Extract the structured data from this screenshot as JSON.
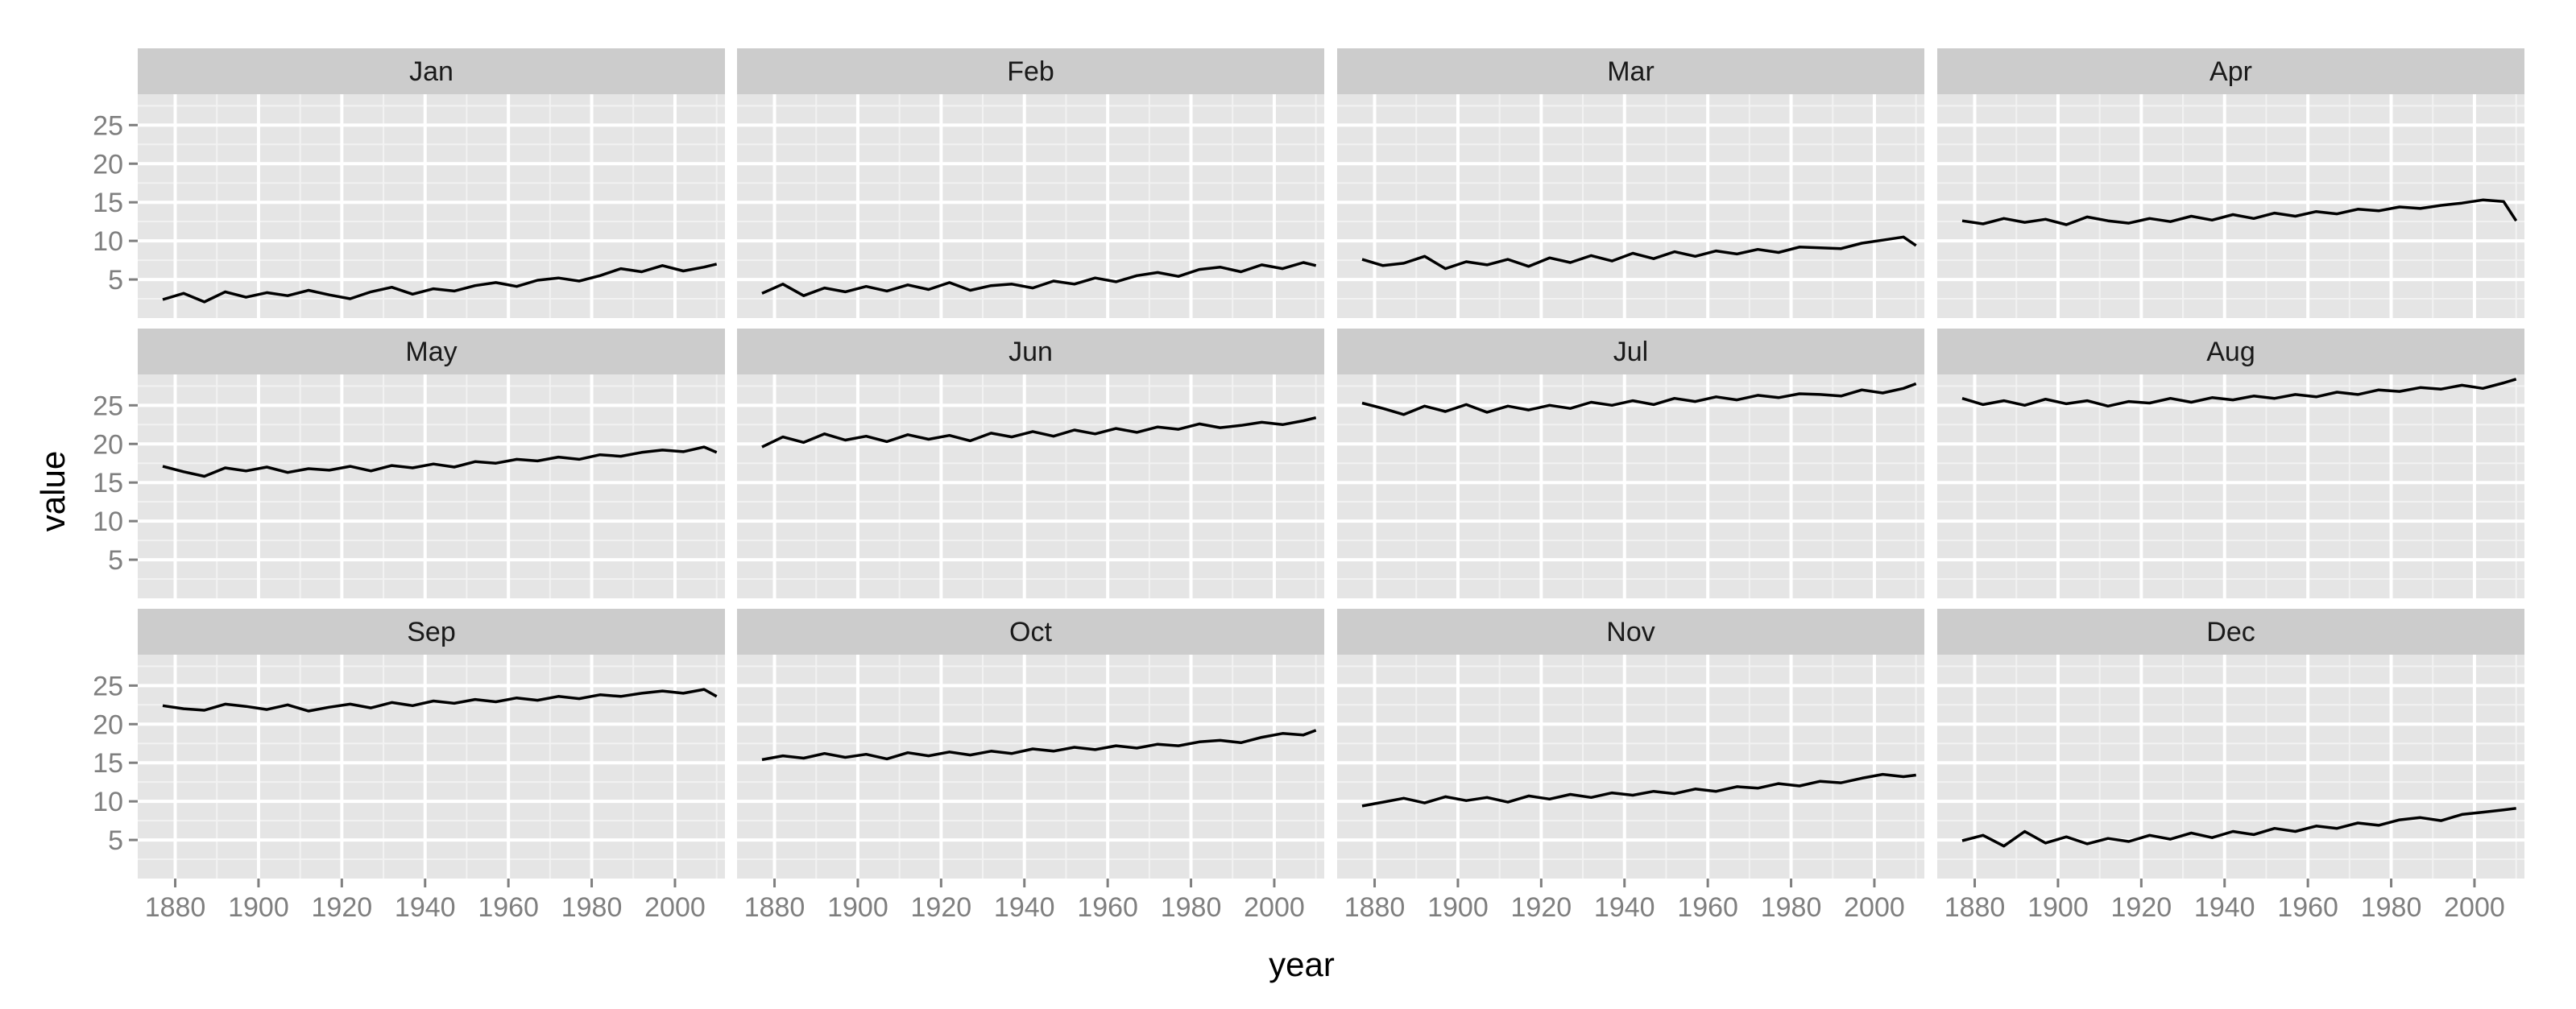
{
  "colors": {
    "panel_background": "#e5e5e5",
    "strip_background": "#cccccc",
    "grid_major": "#ffffff",
    "grid_minor": "#f2f2f2",
    "line": "#000000",
    "tick_label": "#7f7f7f"
  },
  "chart_data": {
    "type": "line",
    "layout": "facet grid, 3 rows x 4 columns, shared axes",
    "xlabel": "year",
    "ylabel": "value",
    "xlim": [
      1871,
      2012
    ],
    "ylim": [
      0,
      29
    ],
    "x_ticks": [
      1880,
      1900,
      1920,
      1940,
      1960,
      1980,
      2000
    ],
    "x_tick_labels": [
      "1880",
      "1900",
      "1920",
      "1940",
      "1960",
      "1980",
      "2000"
    ],
    "y_ticks": [
      5,
      10,
      15,
      20,
      25
    ],
    "y_tick_labels": [
      "5",
      "10",
      "15",
      "20",
      "25"
    ],
    "grid": true,
    "legend": "none",
    "x": [
      1877,
      1882,
      1887,
      1892,
      1897,
      1902,
      1907,
      1912,
      1917,
      1922,
      1927,
      1932,
      1937,
      1942,
      1947,
      1952,
      1957,
      1962,
      1967,
      1972,
      1977,
      1982,
      1987,
      1992,
      1997,
      2002,
      2007,
      2010
    ],
    "panels": [
      {
        "name": "Jan",
        "values": [
          2.4,
          3.2,
          2.1,
          3.4,
          2.7,
          3.3,
          2.9,
          3.6,
          3.0,
          2.5,
          3.4,
          4.0,
          3.1,
          3.8,
          3.5,
          4.2,
          4.6,
          4.1,
          4.9,
          5.2,
          4.8,
          5.5,
          6.4,
          6.0,
          6.8,
          6.1,
          6.6,
          7.0
        ]
      },
      {
        "name": "Feb",
        "values": [
          3.2,
          4.4,
          2.9,
          3.9,
          3.4,
          4.1,
          3.5,
          4.3,
          3.7,
          4.6,
          3.6,
          4.2,
          4.4,
          3.9,
          4.8,
          4.4,
          5.2,
          4.7,
          5.5,
          5.9,
          5.4,
          6.3,
          6.6,
          6.0,
          6.9,
          6.4,
          7.2,
          6.8
        ]
      },
      {
        "name": "Mar",
        "values": [
          7.6,
          6.8,
          7.1,
          8.0,
          6.4,
          7.3,
          6.9,
          7.6,
          6.7,
          7.8,
          7.2,
          8.1,
          7.4,
          8.4,
          7.7,
          8.6,
          8.0,
          8.7,
          8.3,
          8.9,
          8.5,
          9.2,
          9.1,
          9.0,
          9.7,
          10.1,
          10.5,
          9.4
        ]
      },
      {
        "name": "Apr",
        "values": [
          12.6,
          12.2,
          12.9,
          12.4,
          12.8,
          12.1,
          13.1,
          12.6,
          12.3,
          12.9,
          12.5,
          13.2,
          12.7,
          13.4,
          12.9,
          13.6,
          13.2,
          13.8,
          13.5,
          14.1,
          13.9,
          14.4,
          14.2,
          14.6,
          14.9,
          15.3,
          15.1,
          12.6
        ]
      },
      {
        "name": "May",
        "values": [
          17.1,
          16.4,
          15.8,
          16.9,
          16.5,
          17.0,
          16.3,
          16.8,
          16.6,
          17.1,
          16.5,
          17.2,
          16.9,
          17.4,
          17.0,
          17.7,
          17.5,
          18.0,
          17.8,
          18.3,
          18.0,
          18.6,
          18.4,
          18.9,
          19.2,
          19.0,
          19.6,
          18.9
        ]
      },
      {
        "name": "Jun",
        "values": [
          19.6,
          20.9,
          20.2,
          21.3,
          20.5,
          21.0,
          20.3,
          21.2,
          20.6,
          21.1,
          20.4,
          21.4,
          20.9,
          21.6,
          21.0,
          21.8,
          21.3,
          22.0,
          21.5,
          22.2,
          21.9,
          22.6,
          22.1,
          22.4,
          22.8,
          22.5,
          23.0,
          23.4
        ]
      },
      {
        "name": "Jul",
        "values": [
          25.3,
          24.6,
          23.8,
          24.9,
          24.2,
          25.1,
          24.1,
          24.9,
          24.4,
          25.0,
          24.6,
          25.4,
          25.0,
          25.6,
          25.1,
          25.9,
          25.5,
          26.1,
          25.7,
          26.3,
          26.0,
          26.5,
          26.4,
          26.2,
          27.0,
          26.6,
          27.2,
          27.8
        ]
      },
      {
        "name": "Aug",
        "values": [
          25.9,
          25.1,
          25.6,
          25.0,
          25.8,
          25.2,
          25.6,
          24.9,
          25.5,
          25.3,
          25.9,
          25.4,
          26.0,
          25.7,
          26.2,
          25.9,
          26.4,
          26.1,
          26.7,
          26.4,
          27.0,
          26.8,
          27.3,
          27.1,
          27.6,
          27.2,
          27.9,
          28.4
        ]
      },
      {
        "name": "Sep",
        "values": [
          22.4,
          22.0,
          21.8,
          22.6,
          22.3,
          21.9,
          22.5,
          21.7,
          22.2,
          22.6,
          22.1,
          22.8,
          22.4,
          23.0,
          22.7,
          23.2,
          22.9,
          23.4,
          23.1,
          23.6,
          23.3,
          23.8,
          23.6,
          24.0,
          24.3,
          24.0,
          24.5,
          23.6
        ]
      },
      {
        "name": "Oct",
        "values": [
          15.4,
          15.9,
          15.6,
          16.2,
          15.7,
          16.1,
          15.5,
          16.3,
          15.9,
          16.4,
          16.0,
          16.5,
          16.2,
          16.8,
          16.5,
          17.0,
          16.7,
          17.2,
          16.9,
          17.4,
          17.2,
          17.7,
          17.9,
          17.6,
          18.3,
          18.8,
          18.6,
          19.2
        ]
      },
      {
        "name": "Nov",
        "values": [
          9.4,
          9.9,
          10.4,
          9.8,
          10.6,
          10.1,
          10.5,
          9.9,
          10.7,
          10.3,
          10.9,
          10.5,
          11.1,
          10.8,
          11.3,
          11.0,
          11.6,
          11.3,
          11.9,
          11.7,
          12.3,
          12.0,
          12.6,
          12.4,
          13.0,
          13.5,
          13.2,
          13.4
        ]
      },
      {
        "name": "Dec",
        "values": [
          4.9,
          5.6,
          4.2,
          6.1,
          4.6,
          5.4,
          4.5,
          5.2,
          4.8,
          5.6,
          5.1,
          5.9,
          5.3,
          6.1,
          5.7,
          6.5,
          6.1,
          6.8,
          6.5,
          7.2,
          6.9,
          7.6,
          7.9,
          7.5,
          8.3,
          8.6,
          8.9,
          9.1
        ]
      }
    ]
  }
}
